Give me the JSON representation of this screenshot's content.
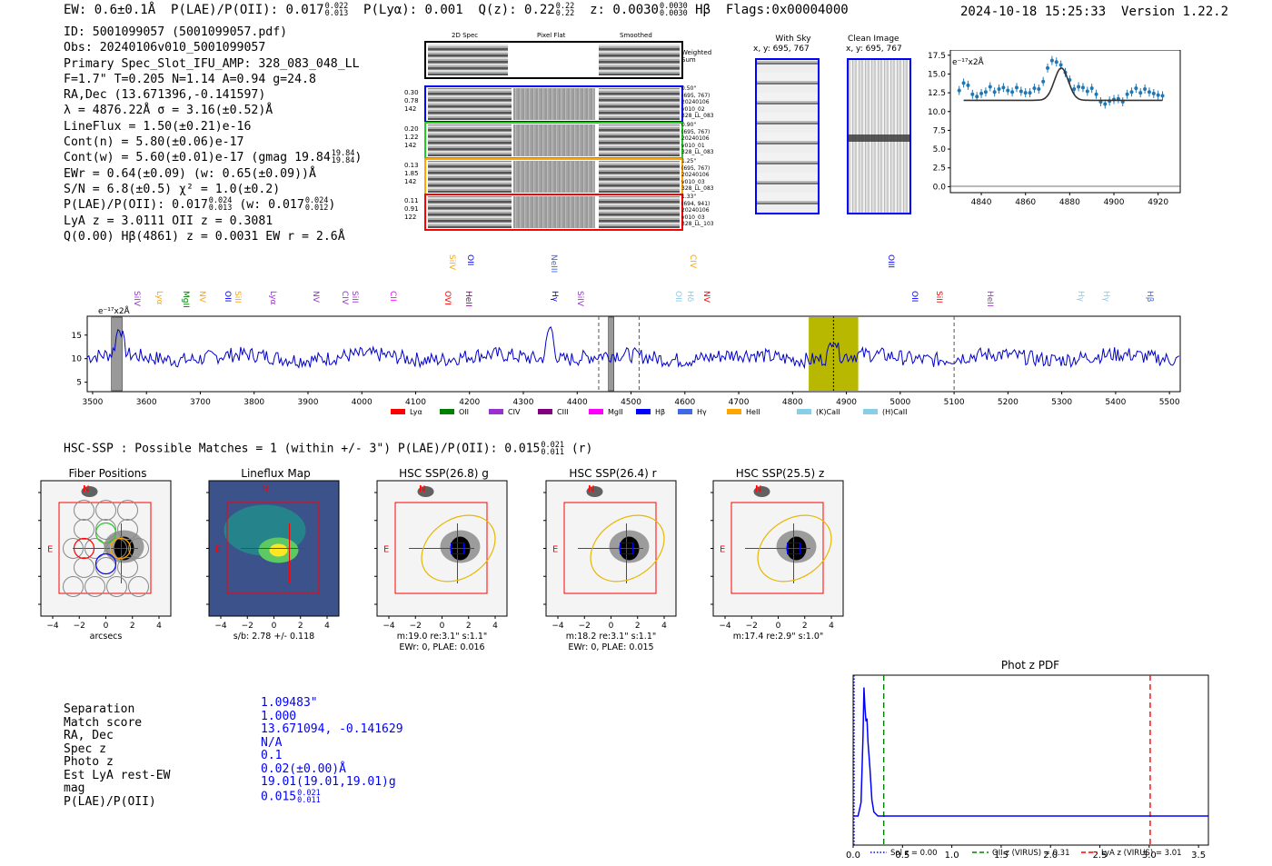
{
  "header": {
    "ew": "EW: 0.6±0.1Å",
    "plae_label": "P(LAE)/P(OII): 0.017",
    "plae_hi": "0.022",
    "plae_lo": "0.013",
    "plya": "P(Lyα): 0.001",
    "qz_label": "Q(z): 0.22",
    "qz_hi": "0.22",
    "qz_lo": "0.22",
    "z_label": "z: 0.0030",
    "z_hi": "0.0030",
    "z_lo": "0.0030",
    "line": "Hβ",
    "flags": "Flags:0x00004000",
    "datetime": "2024-10-18 15:25:33",
    "version": "Version 1.22.2"
  },
  "info": {
    "id": "ID: 5001099057 (5001099057.pdf)",
    "obs": "Obs: 20240106v010_5001099057",
    "primary": "Primary Spec_Slot_IFU_AMP: 328_083_048_LL",
    "params": "F=1.7\"  T=0.205  N=1.14  A=0.94  g=24.8",
    "radec": "RA,Dec (13.671396,-0.141597)",
    "lambda": "λ = 4876.22Å  σ = 3.16(±0.52)Å",
    "lineflux": "LineFlux = 1.50(±0.21)e-16",
    "contn": "Cont(n) = 5.80(±0.06)e-17",
    "contw": "Cont(w) = 5.60(±0.01)e-17 (gmag 19.84",
    "contw_hi": "19.84",
    "contw_lo": "19.84",
    "contw_close": ")",
    "ewr": "EWr = 0.64(±0.09) (w: 0.65(±0.09))Å",
    "sn": "S/N = 6.8(±0.5)  χ² = 1.0(±0.2)",
    "plae": "P(LAE)/P(OII): 0.017",
    "plae_hi": "0.024",
    "plae_lo": "0.013",
    "plae_w": "(w: 0.017",
    "plae_w_hi": "0.024",
    "plae_w_lo": "0.012",
    "plae_w_close": ")",
    "lya": "LyA z = 3.0111  OII z = 0.3081",
    "q": "Q(0.00) Hβ(4861) z = 0.0031  EW r = 2.6Å"
  },
  "stamps": {
    "col_2d": "2D Spec",
    "col_flat": "Pixel Flat",
    "col_smooth": "Smoothed",
    "weighted_sum": "Weighted Sum",
    "rows": [
      {
        "left": [
          "0.30",
          "0.78",
          "142"
        ],
        "right": [
          "0.50\"",
          "(695, 767)",
          "20240106",
          "v010_02",
          "328_LL_083"
        ],
        "color": "#0000ff"
      },
      {
        "left": [
          "0.20",
          "1.22",
          "142"
        ],
        "right": [
          "0.90\"",
          "(695, 767)",
          "20240106",
          "v010_01",
          "328_LL_083"
        ],
        "color": "#22cc22"
      },
      {
        "left": [
          "0.13",
          "1.85",
          "142"
        ],
        "right": [
          "1.25\"",
          "(695, 767)",
          "20240106",
          "v010_03",
          "328_LL_083"
        ],
        "color": "#ffa500"
      },
      {
        "left": [
          "0.11",
          "0.91",
          "122"
        ],
        "right": [
          "1.33\"",
          "(694, 941)",
          "20240106",
          "v010_03",
          "328_LL_103"
        ],
        "color": "#ff0000"
      }
    ]
  },
  "images": {
    "with_sky_title": "With Sky",
    "with_sky_coords": "x, y: 695, 767",
    "clean_title": "Clean Image",
    "clean_coords": "x, y: 695, 767"
  },
  "fit_plot": {
    "scale_label": "e⁻¹⁷x2Å",
    "xticks": [
      "4840",
      "4860",
      "4880",
      "4900",
      "4920"
    ],
    "yticks": [
      "0.0",
      "2.5",
      "5.0",
      "7.5",
      "10.0",
      "12.5",
      "15.0",
      "17.5"
    ]
  },
  "spectrum": {
    "scale_label": "e⁻¹⁷x2Å",
    "xticks": [
      "3500",
      "3600",
      "3700",
      "3800",
      "3900",
      "4000",
      "4100",
      "4200",
      "4300",
      "4400",
      "4500",
      "4600",
      "4700",
      "4800",
      "4900",
      "5000",
      "5100",
      "5200",
      "5300",
      "5400",
      "5500"
    ],
    "yticks": [
      "5",
      "10",
      "15"
    ],
    "upper_lines": [
      {
        "label": "SiIV",
        "color": "#ffa500"
      },
      {
        "label": "OII",
        "color": "#0000ff"
      },
      {
        "label": "NeIII",
        "color": "#4169e1"
      },
      {
        "label": "CIV",
        "color": "#ffa500"
      },
      {
        "label": "OIII",
        "color": "#0000ff"
      }
    ],
    "lower_lines": [
      {
        "label": "SiIV",
        "color": "#9932cc"
      },
      {
        "label": "Lyα",
        "color": "#ffa500"
      },
      {
        "label": "MgII",
        "color": "#008000"
      },
      {
        "label": "NV",
        "color": "#ffa500"
      },
      {
        "label": "OII",
        "color": "#0000ff"
      },
      {
        "label": "SiII",
        "color": "#ffa500"
      },
      {
        "label": "Lyα",
        "color": "#9932cc"
      },
      {
        "label": "NV",
        "color": "#9932cc"
      },
      {
        "label": "CIV",
        "color": "#9932cc"
      },
      {
        "label": "SiII",
        "color": "#9932cc"
      },
      {
        "label": "CII",
        "color": "#ff00ff"
      },
      {
        "label": "OVI",
        "color": "#ff0000"
      },
      {
        "label": "HeII",
        "color": "#800080"
      },
      {
        "label": "Hγ",
        "color": "#0000cd"
      },
      {
        "label": "SiIV",
        "color": "#9932cc"
      },
      {
        "label": "OII",
        "color": "#87ceeb"
      },
      {
        "label": "Hδ",
        "color": "#87ceeb"
      },
      {
        "label": "NV",
        "color": "#ff0000"
      },
      {
        "label": "OII",
        "color": "#0000ff"
      },
      {
        "label": "SiII",
        "color": "#ff0000"
      },
      {
        "label": "HeII",
        "color": "#9932cc"
      },
      {
        "label": "Hγ",
        "color": "#87ceeb"
      },
      {
        "label": "Hγ",
        "color": "#87ceeb"
      },
      {
        "label": "Hβ",
        "color": "#4169e1"
      }
    ],
    "legend": [
      {
        "label": "Lyα",
        "color": "#ff0000"
      },
      {
        "label": "OII",
        "color": "#008000"
      },
      {
        "label": "CIV",
        "color": "#9932cc"
      },
      {
        "label": "CIII",
        "color": "#800080"
      },
      {
        "label": "MgII",
        "color": "#ff00ff"
      },
      {
        "label": "Hβ",
        "color": "#0000ff"
      },
      {
        "label": "Hγ",
        "color": "#4169e1"
      },
      {
        "label": "HeII",
        "color": "#ffa500"
      },
      {
        "label": "(K)CaII",
        "color": "#87ceeb"
      },
      {
        "label": "(H)CaII",
        "color": "#87ceeb"
      }
    ]
  },
  "hsc": {
    "header": "HSC-SSP : Possible Matches = 1 (within +/- 3\")  P(LAE)/P(OII): 0.015",
    "header_hi": "0.021",
    "header_lo": "0.011",
    "header_close": "(r)",
    "cutouts": [
      {
        "title": "Fiber Positions",
        "cap1": "arcsecs",
        "cap2": ""
      },
      {
        "title": "Lineflux Map",
        "cap1": "s/b: 2.78 +/- 0.118",
        "cap2": ""
      },
      {
        "title": "HSC SSP(26.8) g",
        "cap1": "m:19.0  re:3.1\"  s:1.1\"",
        "cap2": "EWr: 0, PLAE: 0.016"
      },
      {
        "title": "HSC SSP(26.4) r",
        "cap1": "m:18.2  re:3.1\"  s:1.1\"",
        "cap2": "EWr: 0, PLAE: 0.015"
      },
      {
        "title": "HSC SSP(25.5) z",
        "cap1": "m:17.4  re:2.9\"  s:1.0\"",
        "cap2": ""
      }
    ],
    "axis_ticks": [
      "4",
      "2",
      "0",
      "−2",
      "−4"
    ],
    "xaxis_ticks": [
      "−4",
      "−2",
      "0",
      "2",
      "4"
    ],
    "north": "N",
    "east": "E"
  },
  "match": {
    "labels": [
      "Separation",
      "Match score",
      "RA, Dec",
      "Spec z",
      "Photo z",
      "Est LyA rest-EW",
      "mag",
      "P(LAE)/P(OII)"
    ],
    "values": [
      "1.09483\"",
      "1.000",
      "13.671094, -0.141629",
      "N/A",
      "0.1",
      "0.02(±0.00)Å",
      "19.01(19.01,19.01)g",
      "0.015"
    ],
    "plae_hi": "0.021",
    "plae_lo": "0.011"
  },
  "pdf_plot": {
    "title": "Phot z PDF",
    "xticks": [
      "0.0",
      "0.5",
      "1.0",
      "1.5",
      "2.0",
      "2.5",
      "3.0",
      "3.5"
    ],
    "legend": [
      {
        "label": "Sol z = 0.00",
        "color": "#0000ff",
        "style": "dotted"
      },
      {
        "label": "OII z (VIRUS) = 0.31",
        "color": "#008000",
        "style": "dashed"
      },
      {
        "label": "LyA z (VIRUS) = 3.01",
        "color": "#ff0000",
        "style": "dashed"
      }
    ]
  },
  "chart_data": [
    {
      "type": "scatter",
      "title": "",
      "xlabel": "",
      "ylabel": "e-17x2Å",
      "xlim": [
        4826,
        4930
      ],
      "ylim": [
        -0.8,
        18.2
      ],
      "x": [
        4830,
        4832,
        4834,
        4836,
        4838,
        4840,
        4842,
        4844,
        4846,
        4848,
        4850,
        4852,
        4854,
        4856,
        4858,
        4860,
        4862,
        4864,
        4866,
        4868,
        4870,
        4872,
        4874,
        4876,
        4878,
        4880,
        4882,
        4884,
        4886,
        4888,
        4890,
        4892,
        4894,
        4896,
        4898,
        4900,
        4902,
        4904,
        4906,
        4908,
        4910,
        4912,
        4914,
        4916,
        4918,
        4920,
        4922
      ],
      "y": [
        12.8,
        13.8,
        13.5,
        12.3,
        12.0,
        12.4,
        12.6,
        13.3,
        12.6,
        13.0,
        13.2,
        12.8,
        12.6,
        13.2,
        12.7,
        12.5,
        12.5,
        13.1,
        13.0,
        14.0,
        15.8,
        16.8,
        16.6,
        16.2,
        15.2,
        14.2,
        13.0,
        13.3,
        13.2,
        12.7,
        13.1,
        12.3,
        11.3,
        11.0,
        11.4,
        11.6,
        11.7,
        11.3,
        12.3,
        12.6,
        13.1,
        12.5,
        13.0,
        12.6,
        12.4,
        12.2,
        12.1
      ],
      "fit": {
        "continuum": 11.5,
        "amplitude": 4.3,
        "center": 4876.2,
        "sigma": 3.16
      }
    },
    {
      "type": "line",
      "title": "",
      "xlabel": "wavelength (Å)",
      "ylabel": "e-17x2Å",
      "xlim": [
        3490,
        5520
      ],
      "ylim": [
        3,
        19
      ],
      "highlight_range": [
        4830,
        4922
      ],
      "marker_x": 4876,
      "dashed_x": [
        4440,
        4515,
        5100
      ],
      "grey_bands": [
        [
          3535,
          3555
        ],
        [
          4458,
          4468
        ]
      ],
      "peaks": [
        [
          3550,
          6
        ],
        [
          4350,
          7
        ],
        [
          4876,
          4.5
        ]
      ],
      "baseline": 10.3
    },
    {
      "type": "line",
      "title": "Phot z PDF",
      "xlabel": "",
      "ylabel": "",
      "xlim": [
        0,
        3.6
      ],
      "ylim": [
        0,
        1
      ],
      "x": [
        0.0,
        0.05,
        0.08,
        0.1,
        0.11,
        0.12,
        0.13,
        0.14,
        0.15,
        0.17,
        0.19,
        0.21,
        0.25,
        0.3,
        3.6
      ],
      "y": [
        0.0,
        0.0,
        0.1,
        0.6,
        0.95,
        0.8,
        0.7,
        0.72,
        0.55,
        0.35,
        0.12,
        0.03,
        0.0,
        0.0,
        0.0
      ],
      "vlines": [
        {
          "x": 0.0,
          "label": "Sol z = 0.00",
          "color": "#0000ff"
        },
        {
          "x": 0.31,
          "label": "OII z (VIRUS) = 0.31",
          "color": "#008000"
        },
        {
          "x": 3.01,
          "label": "LyA z (VIRUS) = 3.01",
          "color": "#ff0000"
        }
      ]
    }
  ]
}
